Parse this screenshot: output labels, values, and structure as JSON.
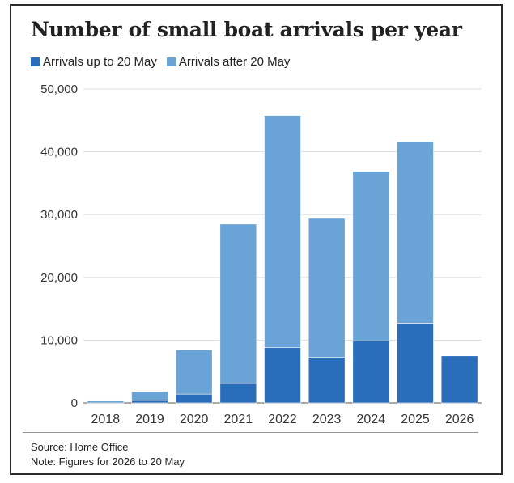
{
  "title": "Number of small boat arrivals per year",
  "legend": [
    {
      "label": "Arrivals up to 20 May",
      "color": "#2a6ebb"
    },
    {
      "label": "Arrivals after 20 May",
      "color": "#6aa3d5"
    }
  ],
  "footer": {
    "source": "Source: Home Office",
    "note": "Note: Figures for 2026 to 20 May"
  },
  "chart_data": {
    "type": "bar",
    "stacked": true,
    "categories": [
      "2018",
      "2019",
      "2020",
      "2021",
      "2022",
      "2023",
      "2024",
      "2025",
      "2026"
    ],
    "series": [
      {
        "name": "Arrivals up to 20 May",
        "color": "#2a6ebb",
        "values": [
          0,
          400,
          1400,
          3100,
          8800,
          7300,
          9900,
          12700,
          7500
        ]
      },
      {
        "name": "Arrivals after 20 May",
        "color": "#6aa3d5",
        "values": [
          300,
          1400,
          7100,
          25400,
          37000,
          22100,
          27000,
          28900,
          0
        ]
      }
    ],
    "ylim": [
      0,
      50000
    ],
    "yticks": [
      0,
      10000,
      20000,
      30000,
      40000,
      50000
    ],
    "ytick_labels": [
      "0",
      "10,000",
      "20,000",
      "30,000",
      "40,000",
      "50,000"
    ],
    "grid": true
  }
}
